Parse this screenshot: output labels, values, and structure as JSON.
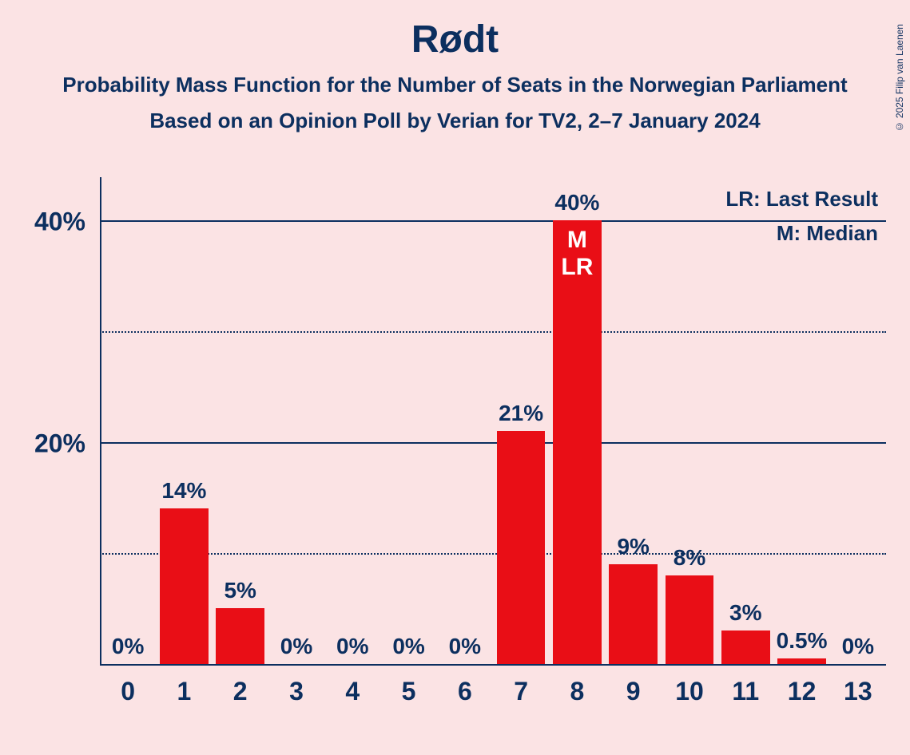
{
  "title": "Rødt",
  "subtitle1": "Probability Mass Function for the Number of Seats in the Norwegian Parliament",
  "subtitle2": "Based on an Opinion Poll by Verian for TV2, 2–7 January 2024",
  "copyright": "© 2025 Filip van Laenen",
  "legend": {
    "lr": "LR: Last Result",
    "m": "M: Median"
  },
  "chart": {
    "type": "bar",
    "bar_color": "#e90e16",
    "text_color": "#0c2f5f",
    "background_color": "#fbe3e4",
    "inner_label_color": "#ffffff",
    "y_max": 44,
    "y_ticks_major": [
      20,
      40
    ],
    "y_ticks_minor": [
      10,
      30
    ],
    "x_categories": [
      "0",
      "1",
      "2",
      "3",
      "4",
      "5",
      "6",
      "7",
      "8",
      "9",
      "10",
      "11",
      "12",
      "13"
    ],
    "bar_width_ratio": 0.86,
    "bars": [
      {
        "x": "0",
        "value": 0,
        "label": "0%"
      },
      {
        "x": "1",
        "value": 14,
        "label": "14%"
      },
      {
        "x": "2",
        "value": 5,
        "label": "5%"
      },
      {
        "x": "3",
        "value": 0,
        "label": "0%"
      },
      {
        "x": "4",
        "value": 0,
        "label": "0%"
      },
      {
        "x": "5",
        "value": 0,
        "label": "0%"
      },
      {
        "x": "6",
        "value": 0,
        "label": "0%"
      },
      {
        "x": "7",
        "value": 21,
        "label": "21%"
      },
      {
        "x": "8",
        "value": 40,
        "label": "40%",
        "inner": "M\nLR"
      },
      {
        "x": "9",
        "value": 9,
        "label": "9%"
      },
      {
        "x": "10",
        "value": 8,
        "label": "8%"
      },
      {
        "x": "11",
        "value": 3,
        "label": "3%"
      },
      {
        "x": "12",
        "value": 0.5,
        "label": "0.5%"
      },
      {
        "x": "13",
        "value": 0,
        "label": "0%"
      }
    ]
  }
}
